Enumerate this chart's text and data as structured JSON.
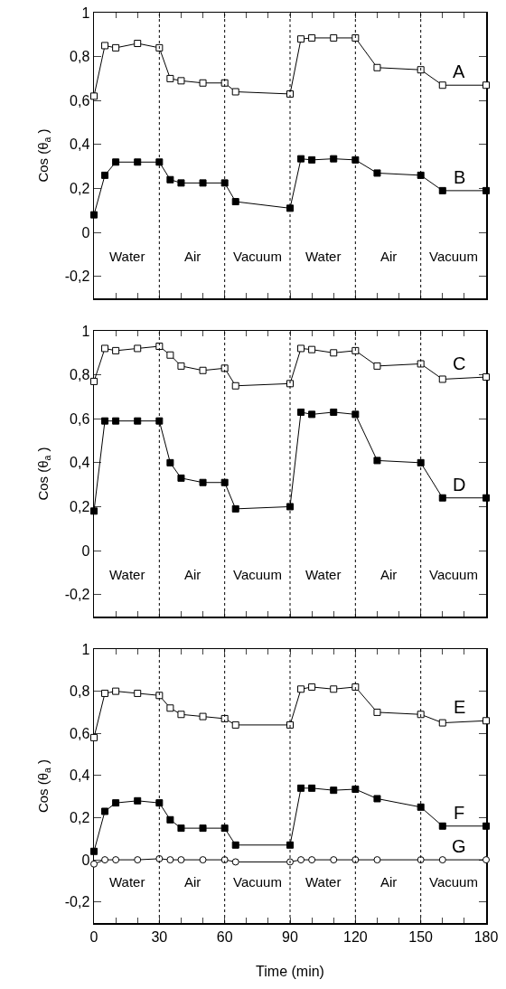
{
  "chart_data": [
    {
      "type": "line",
      "ylabel": "Cos (θ$_{a}$ )",
      "marker": "square",
      "line_style": "solid",
      "tick_labels": "y",
      "x": [
        0,
        5,
        10,
        20,
        30,
        35,
        40,
        50,
        60,
        65,
        90,
        95,
        100,
        110,
        120,
        130,
        150,
        160,
        180
      ],
      "series": [
        {
          "name": "A",
          "color": "#ffffff",
          "values": [
            0.62,
            0.85,
            0.84,
            0.86,
            0.84,
            0.7,
            0.69,
            0.68,
            0.68,
            0.64,
            0.63,
            0.88,
            0.885,
            0.885,
            0.885,
            0.75,
            0.74,
            0.67,
            0.67
          ]
        },
        {
          "name": "B",
          "color": "#000000",
          "values": [
            0.08,
            0.26,
            0.32,
            0.32,
            0.32,
            0.24,
            0.225,
            0.225,
            0.225,
            0.14,
            0.11,
            0.335,
            0.33,
            0.335,
            0.33,
            0.27,
            0.26,
            0.19,
            0.19
          ]
        }
      ],
      "xlim": [
        0,
        180
      ],
      "xticks": [
        0,
        {
          "value": 10,
          "label": null
        },
        {
          "value": 20,
          "label": null
        },
        30,
        {
          "value": 40,
          "label": null
        },
        {
          "value": 50,
          "label": null
        },
        60,
        {
          "value": 70,
          "label": null
        },
        {
          "value": 80,
          "label": null
        },
        90,
        {
          "value": 100,
          "label": null
        },
        {
          "value": 110,
          "label": null
        },
        120,
        {
          "value": 130,
          "label": null
        },
        {
          "value": 140,
          "label": null
        },
        150,
        {
          "value": 160,
          "label": null
        },
        {
          "value": 170,
          "label": null
        },
        180
      ],
      "ylim": [
        -0.3,
        1
      ],
      "yticks": [
        {
          "value": -0.2,
          "label": "-0,2"
        },
        {
          "value": 0,
          "label": "0"
        },
        {
          "value": 0.2,
          "label": "0,2"
        },
        {
          "value": 0.4,
          "label": "0,4"
        },
        {
          "value": 0.6,
          "label": "0,6"
        },
        {
          "value": 0.8,
          "label": "0,8"
        },
        {
          "value": 1,
          "label": "1"
        }
      ],
      "ref_lines": [
        {
          "axis": "x",
          "value": 30,
          "line_style": "dotted"
        },
        {
          "axis": "x",
          "value": 60,
          "line_style": "dotted"
        },
        {
          "axis": "x",
          "value": 90,
          "line_style": "dotted"
        },
        {
          "axis": "x",
          "value": 120,
          "line_style": "dotted"
        },
        {
          "axis": "x",
          "value": 150,
          "line_style": "dotted"
        }
      ],
      "annotations": [
        "Water",
        "Air",
        "Vacuum",
        "Water",
        "Air",
        "Vacuum"
      ]
    },
    {
      "type": "line",
      "ylabel": "Cos (θ$_{a}$ )",
      "marker": "square",
      "line_style": "solid",
      "tick_labels": "y",
      "x": [
        0,
        5,
        10,
        20,
        30,
        35,
        40,
        50,
        60,
        65,
        90,
        95,
        100,
        110,
        120,
        130,
        150,
        160,
        180
      ],
      "series": [
        {
          "name": "C",
          "color": "#ffffff",
          "values": [
            0.77,
            0.92,
            0.91,
            0.92,
            0.93,
            0.89,
            0.84,
            0.82,
            0.83,
            0.75,
            0.76,
            0.92,
            0.915,
            0.9,
            0.91,
            0.84,
            0.85,
            0.78,
            0.79
          ]
        },
        {
          "name": "D",
          "color": "#000000",
          "values": [
            0.18,
            0.59,
            0.59,
            0.59,
            0.59,
            0.4,
            0.33,
            0.31,
            0.31,
            0.19,
            0.2,
            0.63,
            0.62,
            0.63,
            0.62,
            0.41,
            0.4,
            0.24,
            0.24
          ]
        }
      ],
      "xlim": [
        0,
        180
      ],
      "xticks": [
        0,
        {
          "value": 10,
          "label": null
        },
        {
          "value": 20,
          "label": null
        },
        30,
        {
          "value": 40,
          "label": null
        },
        {
          "value": 50,
          "label": null
        },
        60,
        {
          "value": 70,
          "label": null
        },
        {
          "value": 80,
          "label": null
        },
        90,
        {
          "value": 100,
          "label": null
        },
        {
          "value": 110,
          "label": null
        },
        120,
        {
          "value": 130,
          "label": null
        },
        {
          "value": 140,
          "label": null
        },
        150,
        {
          "value": 160,
          "label": null
        },
        {
          "value": 170,
          "label": null
        },
        180
      ],
      "ylim": [
        -0.3,
        1
      ],
      "yticks": [
        {
          "value": -0.2,
          "label": "-0,2"
        },
        {
          "value": 0,
          "label": "0"
        },
        {
          "value": 0.2,
          "label": "0,2"
        },
        {
          "value": 0.4,
          "label": "0,4"
        },
        {
          "value": 0.6,
          "label": "0,6"
        },
        {
          "value": 0.8,
          "label": "0,8"
        },
        {
          "value": 1,
          "label": "1"
        }
      ],
      "ref_lines": [
        {
          "axis": "x",
          "value": 30,
          "line_style": "dotted"
        },
        {
          "axis": "x",
          "value": 60,
          "line_style": "dotted"
        },
        {
          "axis": "x",
          "value": 90,
          "line_style": "dotted"
        },
        {
          "axis": "x",
          "value": 120,
          "line_style": "dotted"
        },
        {
          "axis": "x",
          "value": 150,
          "line_style": "dotted"
        }
      ],
      "annotations": [
        "Water",
        "Air",
        "Vacuum",
        "Water",
        "Air",
        "Vacuum"
      ]
    },
    {
      "type": "line",
      "xlabel": "Time (min)",
      "ylabel": "Cos (θ$_{a}$ )",
      "marker": "square",
      "line_style": "solid",
      "x": [
        0,
        5,
        10,
        20,
        30,
        35,
        40,
        50,
        60,
        65,
        90,
        95,
        100,
        110,
        120,
        130,
        150,
        160,
        180
      ],
      "series": [
        {
          "name": "E",
          "color": "#ffffff",
          "values": [
            0.58,
            0.79,
            0.8,
            0.79,
            0.78,
            0.72,
            0.69,
            0.68,
            0.67,
            0.64,
            0.64,
            0.81,
            0.82,
            0.81,
            0.82,
            0.7,
            0.69,
            0.65,
            0.66
          ]
        },
        {
          "name": "F",
          "color": "#000000",
          "values": [
            0.04,
            0.23,
            0.27,
            0.28,
            0.27,
            0.19,
            0.15,
            0.15,
            0.15,
            0.07,
            0.07,
            0.34,
            0.34,
            0.33,
            0.335,
            0.29,
            0.25,
            0.16,
            0.16
          ]
        },
        {
          "name": "G",
          "color": "#ffffff",
          "marker": "circle",
          "values": [
            -0.02,
            0,
            0,
            0,
            0.005,
            0,
            0,
            0,
            0,
            -0.01,
            -0.01,
            0,
            0,
            0,
            0,
            0,
            0,
            0,
            0
          ]
        }
      ],
      "xlim": [
        0,
        180
      ],
      "xticks": [
        0,
        {
          "value": 10,
          "label": null
        },
        {
          "value": 20,
          "label": null
        },
        30,
        {
          "value": 40,
          "label": null
        },
        {
          "value": 50,
          "label": null
        },
        60,
        {
          "value": 70,
          "label": null
        },
        {
          "value": 80,
          "label": null
        },
        90,
        {
          "value": 100,
          "label": null
        },
        {
          "value": 110,
          "label": null
        },
        120,
        {
          "value": 130,
          "label": null
        },
        {
          "value": 140,
          "label": null
        },
        150,
        {
          "value": 160,
          "label": null
        },
        {
          "value": 170,
          "label": null
        },
        180
      ],
      "ylim": [
        -0.3,
        1
      ],
      "yticks": [
        {
          "value": -0.2,
          "label": "-0,2"
        },
        {
          "value": 0,
          "label": "0"
        },
        {
          "value": 0.2,
          "label": "0,2"
        },
        {
          "value": 0.4,
          "label": "0,4"
        },
        {
          "value": 0.6,
          "label": "0,6"
        },
        {
          "value": 0.8,
          "label": "0,8"
        },
        {
          "value": 1,
          "label": "1"
        }
      ],
      "ref_lines": [
        {
          "axis": "x",
          "value": 30,
          "line_style": "dotted"
        },
        {
          "axis": "x",
          "value": 60,
          "line_style": "dotted"
        },
        {
          "axis": "x",
          "value": 90,
          "line_style": "dotted"
        },
        {
          "axis": "x",
          "value": 120,
          "line_style": "dotted"
        },
        {
          "axis": "x",
          "value": 150,
          "line_style": "dotted"
        }
      ],
      "annotations": [
        "Water",
        "Air",
        "Vacuum",
        "Water",
        "Air",
        "Vacuum"
      ]
    }
  ]
}
